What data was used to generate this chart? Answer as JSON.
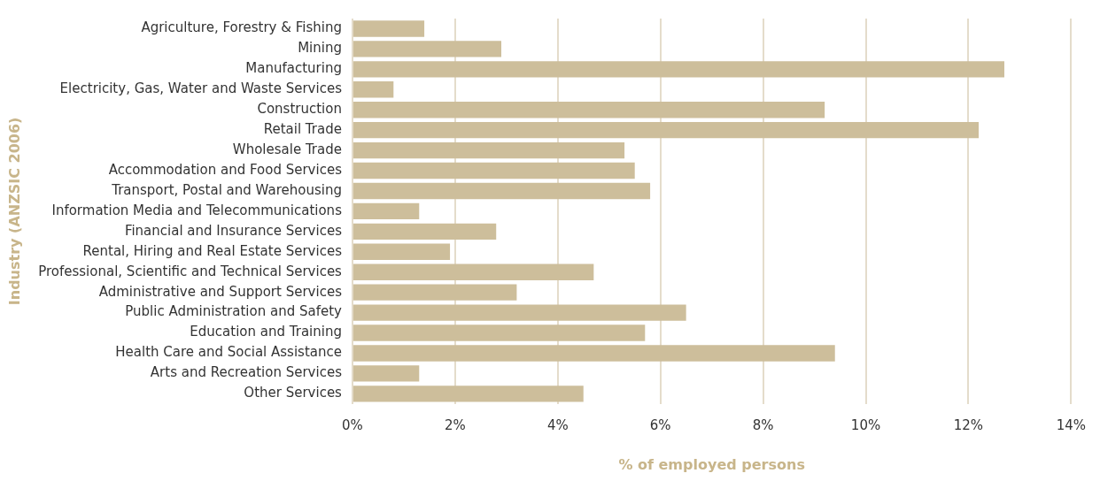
{
  "chart_data": {
    "type": "bar",
    "orientation": "horizontal",
    "xlabel": "% of employed persons",
    "ylabel": "Industry (ANZSIC 2006)",
    "categories": [
      "Agriculture, Forestry & Fishing",
      "Mining",
      "Manufacturing",
      "Electricity, Gas, Water and Waste Services",
      "Construction",
      "Retail Trade",
      "Wholesale Trade",
      "Accommodation and Food Services",
      "Transport, Postal and Warehousing",
      "Information Media and Telecommunications",
      "Financial and Insurance Services",
      "Rental, Hiring and Real Estate Services",
      "Professional, Scientific and Technical Services",
      "Administrative and Support Services",
      "Public Administration and Safety",
      "Education and Training",
      "Health Care and Social Assistance",
      "Arts and Recreation Services",
      "Other Services"
    ],
    "values": [
      1.4,
      2.9,
      12.7,
      0.8,
      9.2,
      12.2,
      5.3,
      5.5,
      5.8,
      1.3,
      2.8,
      1.9,
      4.7,
      3.2,
      6.5,
      5.7,
      9.4,
      1.3,
      4.5
    ],
    "color": "#cdbe9b",
    "xlim": [
      0,
      14
    ],
    "xticks": [
      {
        "value": 0,
        "label": "0%"
      },
      {
        "value": 2,
        "label": "2%"
      },
      {
        "value": 4,
        "label": "4%"
      },
      {
        "value": 6,
        "label": "6%"
      },
      {
        "value": 8,
        "label": "8%"
      },
      {
        "value": 10,
        "label": "10%"
      },
      {
        "value": 12,
        "label": "12%"
      },
      {
        "value": 14,
        "label": "14%"
      }
    ],
    "grid": "x",
    "legend": false
  }
}
